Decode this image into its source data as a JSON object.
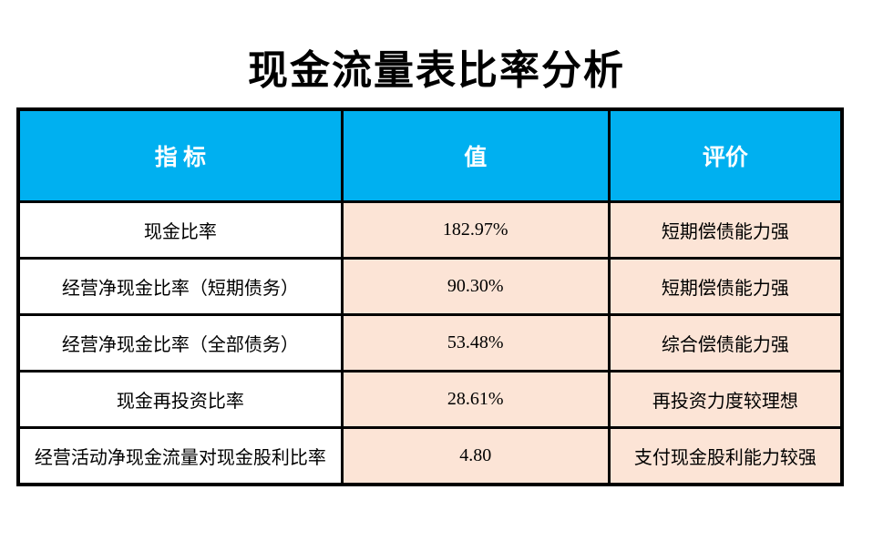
{
  "page": {
    "title": "现金流量表比率分析",
    "background": "#ffffff"
  },
  "table": {
    "columns": [
      {
        "label": "指 标"
      },
      {
        "label": "值"
      },
      {
        "label": "评价"
      }
    ],
    "rows": [
      {
        "indicator": "现金比率",
        "value": "182.97%",
        "evaluation": "短期偿债能力强"
      },
      {
        "indicator": "经营净现金比率（短期债务）",
        "value": "90.30%",
        "evaluation": "短期偿债能力强"
      },
      {
        "indicator": "经营净现金比率（全部债务）",
        "value": "53.48%",
        "evaluation": "综合偿债能力强"
      },
      {
        "indicator": "现金再投资比率",
        "value": "28.61%",
        "evaluation": "再投资力度较理想"
      },
      {
        "indicator": "经营活动净现金流量对现金股利比率",
        "value": "4.80",
        "evaluation": "支付现金股利能力较强"
      }
    ],
    "colors": {
      "header_bg": "#00b0f0",
      "header_text": "#ffffff",
      "indicator_bg": "#ffffff",
      "data_bg": "#fce4d6",
      "border": "#000000"
    }
  }
}
